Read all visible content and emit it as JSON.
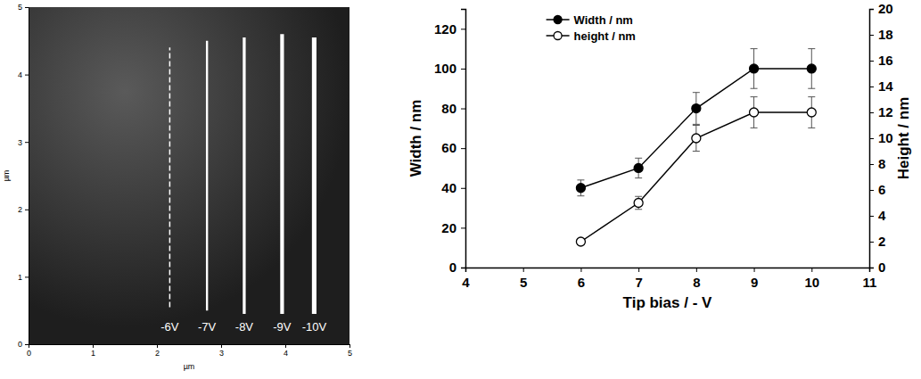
{
  "chart_data": [
    {
      "type": "image",
      "x": [
        2.2,
        2.78,
        3.36,
        3.95,
        4.45
      ],
      "y_start": [
        0.55,
        0.5,
        0.45,
        0.45,
        0.45
      ],
      "y_end": [
        4.4,
        4.5,
        4.55,
        4.6,
        4.55
      ],
      "labels": [
        "-6V",
        "-7V",
        "-8V",
        "-9V",
        "-10V"
      ],
      "x_label": "µm",
      "y_label": "µm",
      "xlim": [
        0,
        5
      ],
      "ylim": [
        0,
        5
      ],
      "xticks": [
        0,
        1,
        2,
        3,
        4,
        5
      ],
      "yticks": [
        0,
        1,
        2,
        3,
        4,
        5
      ],
      "color": "#ffffff"
    },
    {
      "type": "line",
      "x": [
        6,
        7,
        8,
        9,
        10
      ],
      "series": [
        {
          "name": "Width / nm",
          "color": "#000000",
          "marker": "circle",
          "values": [
            40,
            50,
            80,
            100,
            100
          ],
          "errors": [
            4,
            5,
            8,
            10,
            10
          ]
        },
        {
          "name": "height / nm",
          "color": "#000000",
          "marker": "circle-open",
          "axis": "y2",
          "values": [
            2,
            5,
            10,
            12,
            12
          ],
          "errors": [
            0.2,
            0.5,
            1,
            1.2,
            1.2
          ]
        }
      ],
      "x_label": "Tip bias / - V",
      "y_label": "Width / nm",
      "y2_label": "Height / nm",
      "xlim": [
        4,
        11
      ],
      "xticks": [
        4,
        5,
        6,
        7,
        8,
        9,
        10,
        11
      ],
      "ylim": [
        0,
        130
      ],
      "yticks": [
        0,
        20,
        40,
        60,
        80,
        100,
        120
      ],
      "y2lim": [
        0,
        20
      ],
      "y2ticks": [
        0,
        2,
        4,
        6,
        8,
        10,
        12,
        14,
        16,
        18,
        20
      ],
      "legend": "upper left"
    }
  ]
}
